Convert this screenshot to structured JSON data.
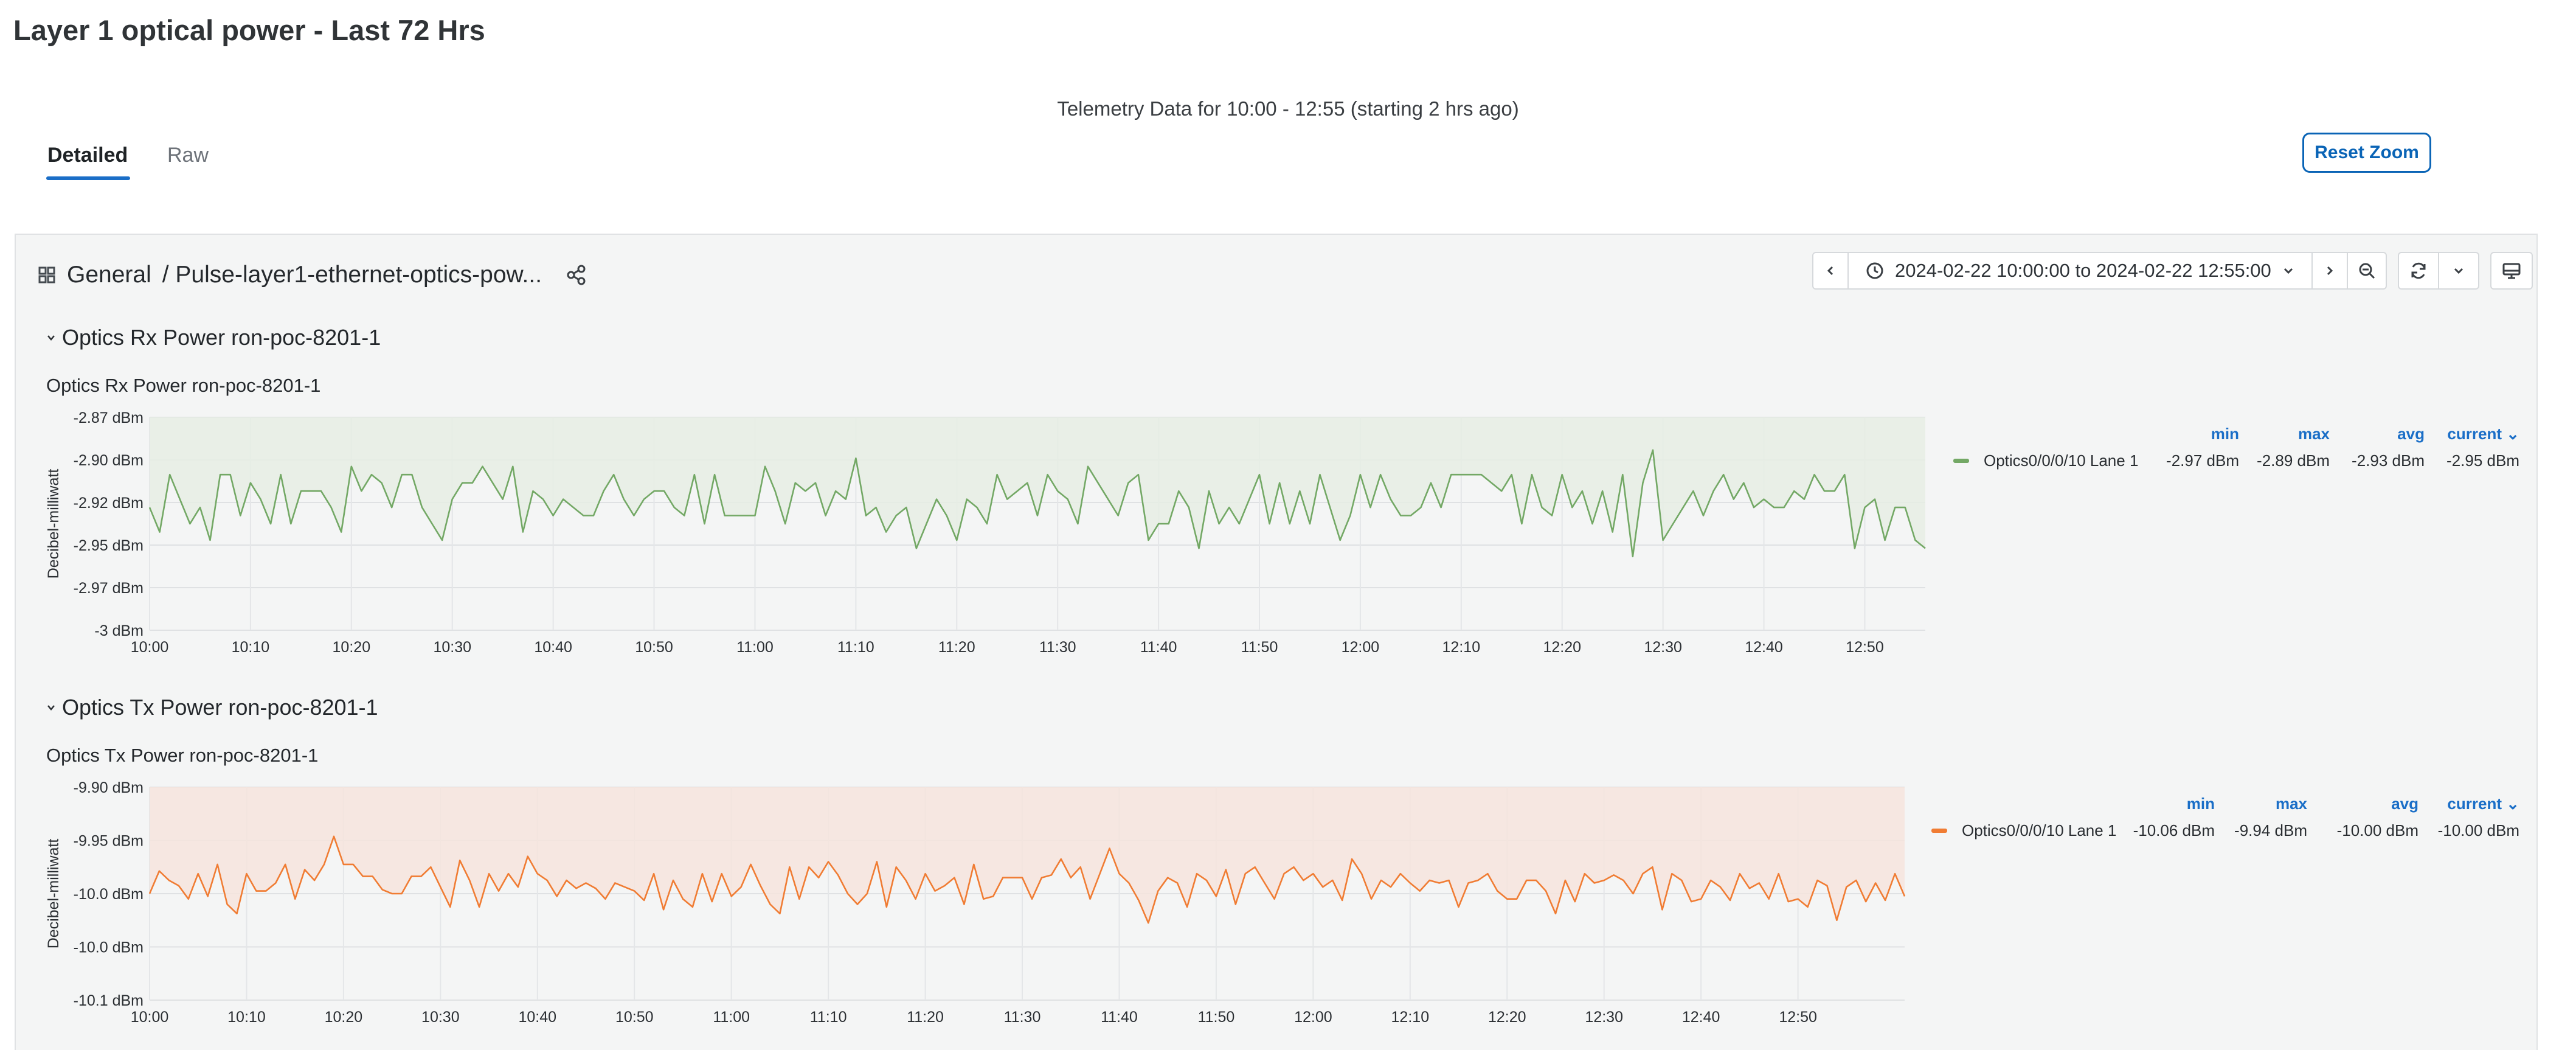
{
  "page": {
    "title": "Layer 1 optical power - Last 72 Hrs",
    "subtitle": "Telemetry Data for 10:00 - 12:55 (starting 2 hrs ago)",
    "tabs": [
      {
        "label": "Detailed",
        "active": true
      },
      {
        "label": "Raw",
        "active": false
      }
    ],
    "reset_zoom_label": "Reset Zoom"
  },
  "dashboard": {
    "title": "General",
    "breadcrumb": "/ Pulse-layer1-ethernet-optics-pow...",
    "time_range": "2024-02-22 10:00:00 to 2024-02-22 12:55:00",
    "icons": [
      "grid-icon",
      "share-icon",
      "chevron-left-icon",
      "clock-icon",
      "chevron-down-icon",
      "chevron-right-icon",
      "zoom-out-icon",
      "refresh-icon",
      "chevron-down-icon",
      "tv-icon"
    ]
  },
  "panels": [
    {
      "row_title": "Optics Rx Power ron-poc-8201-1",
      "panel_title": "Optics Rx Power ron-poc-8201-1",
      "legend": {
        "headers": [
          "min",
          "max",
          "avg",
          "current"
        ],
        "series_name": "Optics0/0/0/10 Lane 1",
        "values": [
          "-2.97 dBm",
          "-2.89 dBm",
          "-2.93 dBm",
          "-2.95 dBm"
        ]
      }
    },
    {
      "row_title": "Optics Tx Power ron-poc-8201-1",
      "panel_title": "Optics Tx Power ron-poc-8201-1",
      "legend": {
        "headers": [
          "min",
          "max",
          "avg",
          "current"
        ],
        "series_name": "Optics0/0/0/10 Lane 1",
        "values": [
          "-10.06 dBm",
          "-9.94 dBm",
          "-10.00 dBm",
          "-10.00 dBm"
        ]
      }
    }
  ],
  "chart_data": [
    {
      "type": "line",
      "title": "Optics Rx Power ron-poc-8201-1",
      "ylabel": "Decibel-milliwatt",
      "ytick_labels": [
        "-2.87 dBm",
        "-2.90 dBm",
        "-2.92 dBm",
        "-2.95 dBm",
        "-2.97 dBm",
        "-3 dBm"
      ],
      "ylim": [
        -3.0,
        -2.87
      ],
      "x_tick_labels": [
        "10:00",
        "10:10",
        "10:20",
        "10:30",
        "10:40",
        "10:50",
        "11:00",
        "11:10",
        "11:20",
        "11:30",
        "11:40",
        "11:50",
        "12:00",
        "12:10",
        "12:20",
        "12:30",
        "12:40",
        "12:50"
      ],
      "x_start": "10:00",
      "x_end": "12:55",
      "x_step_minutes": 1,
      "color": "#73a865",
      "fill_color": "#e6ede4",
      "series": [
        {
          "name": "Optics0/0/0/10 Lane 1",
          "values": [
            -2.925,
            -2.94,
            -2.905,
            -2.92,
            -2.935,
            -2.925,
            -2.945,
            -2.905,
            -2.905,
            -2.93,
            -2.91,
            -2.92,
            -2.935,
            -2.905,
            -2.935,
            -2.915,
            -2.915,
            -2.915,
            -2.925,
            -2.94,
            -2.9,
            -2.915,
            -2.905,
            -2.91,
            -2.925,
            -2.905,
            -2.905,
            -2.925,
            -2.935,
            -2.945,
            -2.92,
            -2.91,
            -2.91,
            -2.9,
            -2.91,
            -2.92,
            -2.9,
            -2.94,
            -2.915,
            -2.92,
            -2.93,
            -2.92,
            -2.925,
            -2.93,
            -2.93,
            -2.915,
            -2.905,
            -2.92,
            -2.93,
            -2.92,
            -2.915,
            -2.915,
            -2.925,
            -2.93,
            -2.905,
            -2.935,
            -2.905,
            -2.93,
            -2.93,
            -2.93,
            -2.93,
            -2.9,
            -2.915,
            -2.935,
            -2.91,
            -2.915,
            -2.91,
            -2.93,
            -2.915,
            -2.92,
            -2.895,
            -2.93,
            -2.925,
            -2.94,
            -2.93,
            -2.925,
            -2.95,
            -2.935,
            -2.92,
            -2.93,
            -2.945,
            -2.92,
            -2.925,
            -2.935,
            -2.905,
            -2.92,
            -2.915,
            -2.91,
            -2.93,
            -2.905,
            -2.915,
            -2.92,
            -2.935,
            -2.9,
            -2.91,
            -2.92,
            -2.93,
            -2.91,
            -2.905,
            -2.945,
            -2.935,
            -2.935,
            -2.915,
            -2.925,
            -2.95,
            -2.915,
            -2.935,
            -2.925,
            -2.935,
            -2.92,
            -2.905,
            -2.935,
            -2.91,
            -2.935,
            -2.915,
            -2.935,
            -2.905,
            -2.925,
            -2.945,
            -2.93,
            -2.905,
            -2.925,
            -2.905,
            -2.92,
            -2.93,
            -2.93,
            -2.925,
            -2.91,
            -2.925,
            -2.905,
            -2.905,
            -2.905,
            -2.905,
            -2.91,
            -2.915,
            -2.905,
            -2.935,
            -2.905,
            -2.925,
            -2.93,
            -2.905,
            -2.925,
            -2.915,
            -2.935,
            -2.915,
            -2.94,
            -2.905,
            -2.955,
            -2.91,
            -2.89,
            -2.945,
            -2.935,
            -2.925,
            -2.915,
            -2.93,
            -2.915,
            -2.905,
            -2.92,
            -2.91,
            -2.925,
            -2.92,
            -2.925,
            -2.925,
            -2.915,
            -2.92,
            -2.905,
            -2.915,
            -2.915,
            -2.905,
            -2.95,
            -2.925,
            -2.92,
            -2.945,
            -2.925,
            -2.925,
            -2.945,
            -2.95
          ]
        }
      ]
    },
    {
      "type": "line",
      "title": "Optics Tx Power ron-poc-8201-1",
      "ylabel": "Decibel-milliwatt",
      "ytick_labels": [
        "-9.90 dBm",
        "-9.95 dBm",
        "-10.0 dBm",
        "-10.0 dBm",
        "-10.1 dBm"
      ],
      "ylim": [
        -10.08,
        -9.92
      ],
      "x_tick_labels": [
        "10:00",
        "10:10",
        "10:20",
        "10:30",
        "10:40",
        "10:50",
        "11:00",
        "11:10",
        "11:20",
        "11:30",
        "11:40",
        "11:50",
        "12:00",
        "12:10",
        "12:20",
        "12:30",
        "12:40",
        "12:50"
      ],
      "x_start": "10:00",
      "x_end": "12:55",
      "x_step_minutes": 1,
      "color": "#f07c33",
      "fill_color": "#f6e4dd",
      "series": [
        {
          "name": "Optics0/0/0/10 Lane 1",
          "values": [
            -10,
            -9.983,
            -9.99,
            -9.994,
            -10.004,
            -9.985,
            -10.002,
            -9.978,
            -10.008,
            -10.015,
            -9.985,
            -9.998,
            -9.998,
            -9.992,
            -9.978,
            -10.004,
            -9.982,
            -9.99,
            -9.978,
            -9.957,
            -9.978,
            -9.978,
            -9.987,
            -9.987,
            -9.997,
            -10,
            -10,
            -9.987,
            -9.987,
            -9.98,
            -9.995,
            -10.01,
            -9.975,
            -9.99,
            -10.01,
            -9.985,
            -9.998,
            -9.985,
            -9.995,
            -9.972,
            -9.985,
            -9.99,
            -10.002,
            -9.99,
            -9.996,
            -9.992,
            -9.996,
            -10.004,
            -9.992,
            -9.995,
            -9.998,
            -10.005,
            -9.985,
            -10.012,
            -9.99,
            -10.004,
            -10.01,
            -9.985,
            -10.006,
            -9.985,
            -10.002,
            -9.995,
            -9.978,
            -9.994,
            -10.008,
            -10.015,
            -9.98,
            -10.004,
            -9.98,
            -9.988,
            -9.976,
            -9.986,
            -10,
            -10.008,
            -10,
            -9.976,
            -10.01,
            -9.98,
            -9.99,
            -10.004,
            -9.985,
            -9.998,
            -9.994,
            -9.988,
            -10.008,
            -9.978,
            -10.004,
            -10.002,
            -9.988,
            -9.988,
            -9.988,
            -10.004,
            -9.988,
            -9.986,
            -9.974,
            -9.988,
            -9.98,
            -10.004,
            -9.985,
            -9.966,
            -9.985,
            -9.992,
            -10.005,
            -10.022,
            -9.998,
            -9.988,
            -9.992,
            -10.01,
            -9.985,
            -9.99,
            -10.002,
            -9.982,
            -10.008,
            -9.985,
            -9.98,
            -9.992,
            -10.004,
            -9.985,
            -9.98,
            -9.99,
            -9.985,
            -9.995,
            -9.99,
            -10.005,
            -9.974,
            -9.985,
            -10.004,
            -9.99,
            -9.995,
            -9.985,
            -9.992,
            -9.998,
            -9.99,
            -9.992,
            -9.99,
            -10.01,
            -9.992,
            -9.99,
            -9.985,
            -9.998,
            -10.004,
            -10.004,
            -9.99,
            -9.99,
            -9.998,
            -10.015,
            -9.99,
            -10.006,
            -9.985,
            -9.992,
            -9.99,
            -9.986,
            -9.99,
            -10,
            -9.985,
            -9.98,
            -10.012,
            -9.985,
            -9.99,
            -10.006,
            -10.004,
            -9.99,
            -9.995,
            -10.005,
            -9.985,
            -9.996,
            -9.992,
            -10.004,
            -9.985,
            -10.006,
            -10.004,
            -10.01,
            -9.99,
            -9.994,
            -10.02,
            -9.995,
            -9.99,
            -10.006,
            -9.992,
            -10.005,
            -9.985,
            -10.002
          ]
        }
      ]
    }
  ]
}
